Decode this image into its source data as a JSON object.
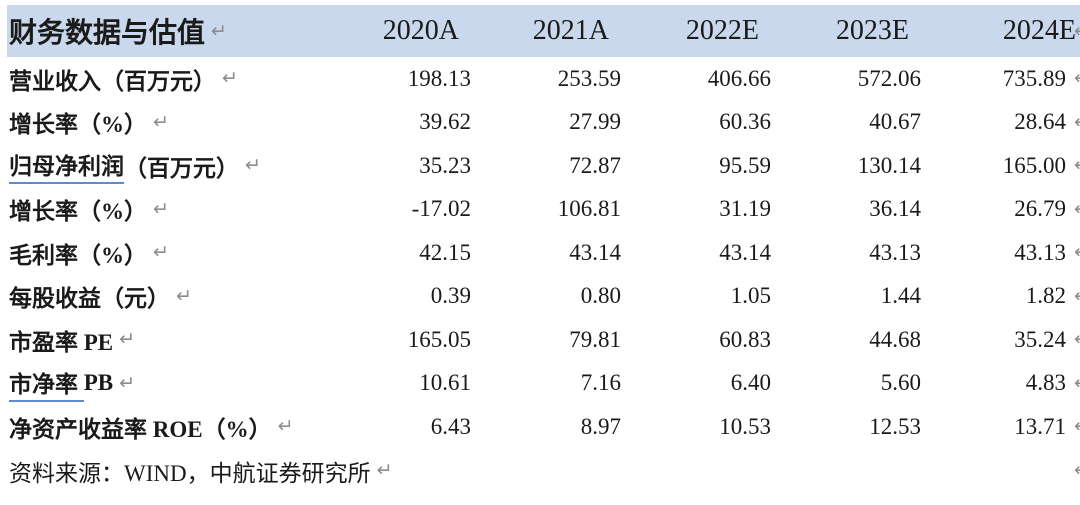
{
  "table": {
    "header": {
      "title": "财务数据与估值",
      "columns": [
        "2020A",
        "2021A",
        "2022E",
        "2023E",
        "2024E"
      ]
    },
    "rows": [
      {
        "label_underlined": "",
        "label": "营业收入（百万元）",
        "values": [
          "198.13",
          "253.59",
          "406.66",
          "572.06",
          "735.89"
        ]
      },
      {
        "label_underlined": "",
        "label": "增长率（%）",
        "values": [
          "39.62",
          "27.99",
          "60.36",
          "40.67",
          "28.64"
        ]
      },
      {
        "label_underlined": "归母净利润",
        "label": "（百万元）",
        "values": [
          "35.23",
          "72.87",
          "95.59",
          "130.14",
          "165.00"
        ]
      },
      {
        "label_underlined": "",
        "label": "增长率（%）",
        "values": [
          "-17.02",
          "106.81",
          "31.19",
          "36.14",
          "26.79"
        ]
      },
      {
        "label_underlined": "",
        "label": "毛利率（%）",
        "values": [
          "42.15",
          "43.14",
          "43.14",
          "43.13",
          "43.13"
        ]
      },
      {
        "label_underlined": "",
        "label": "每股收益（元）",
        "values": [
          "0.39",
          "0.80",
          "1.05",
          "1.44",
          "1.82"
        ]
      },
      {
        "label_underlined": "",
        "label": "市盈率 PE",
        "values": [
          "165.05",
          "79.81",
          "60.83",
          "44.68",
          "35.24"
        ]
      },
      {
        "label_underlined": "市净率 ",
        "label": "PB",
        "values": [
          "10.61",
          "7.16",
          "6.40",
          "5.60",
          "4.83"
        ]
      },
      {
        "label_underlined": "",
        "label": "净资产收益率 ROE（%）",
        "values": [
          "6.43",
          "8.97",
          "10.53",
          "12.53",
          "13.71"
        ]
      }
    ],
    "source": "资料来源：WIND，中航证券研究所"
  },
  "icons": {
    "paragraph_mark": "↵"
  },
  "colors": {
    "header_bg": "#c9d8ec",
    "term_underline": "#5b8bd0",
    "paragraph_mark_gray": "#8c8c8c",
    "text": "#1a1a1a"
  }
}
